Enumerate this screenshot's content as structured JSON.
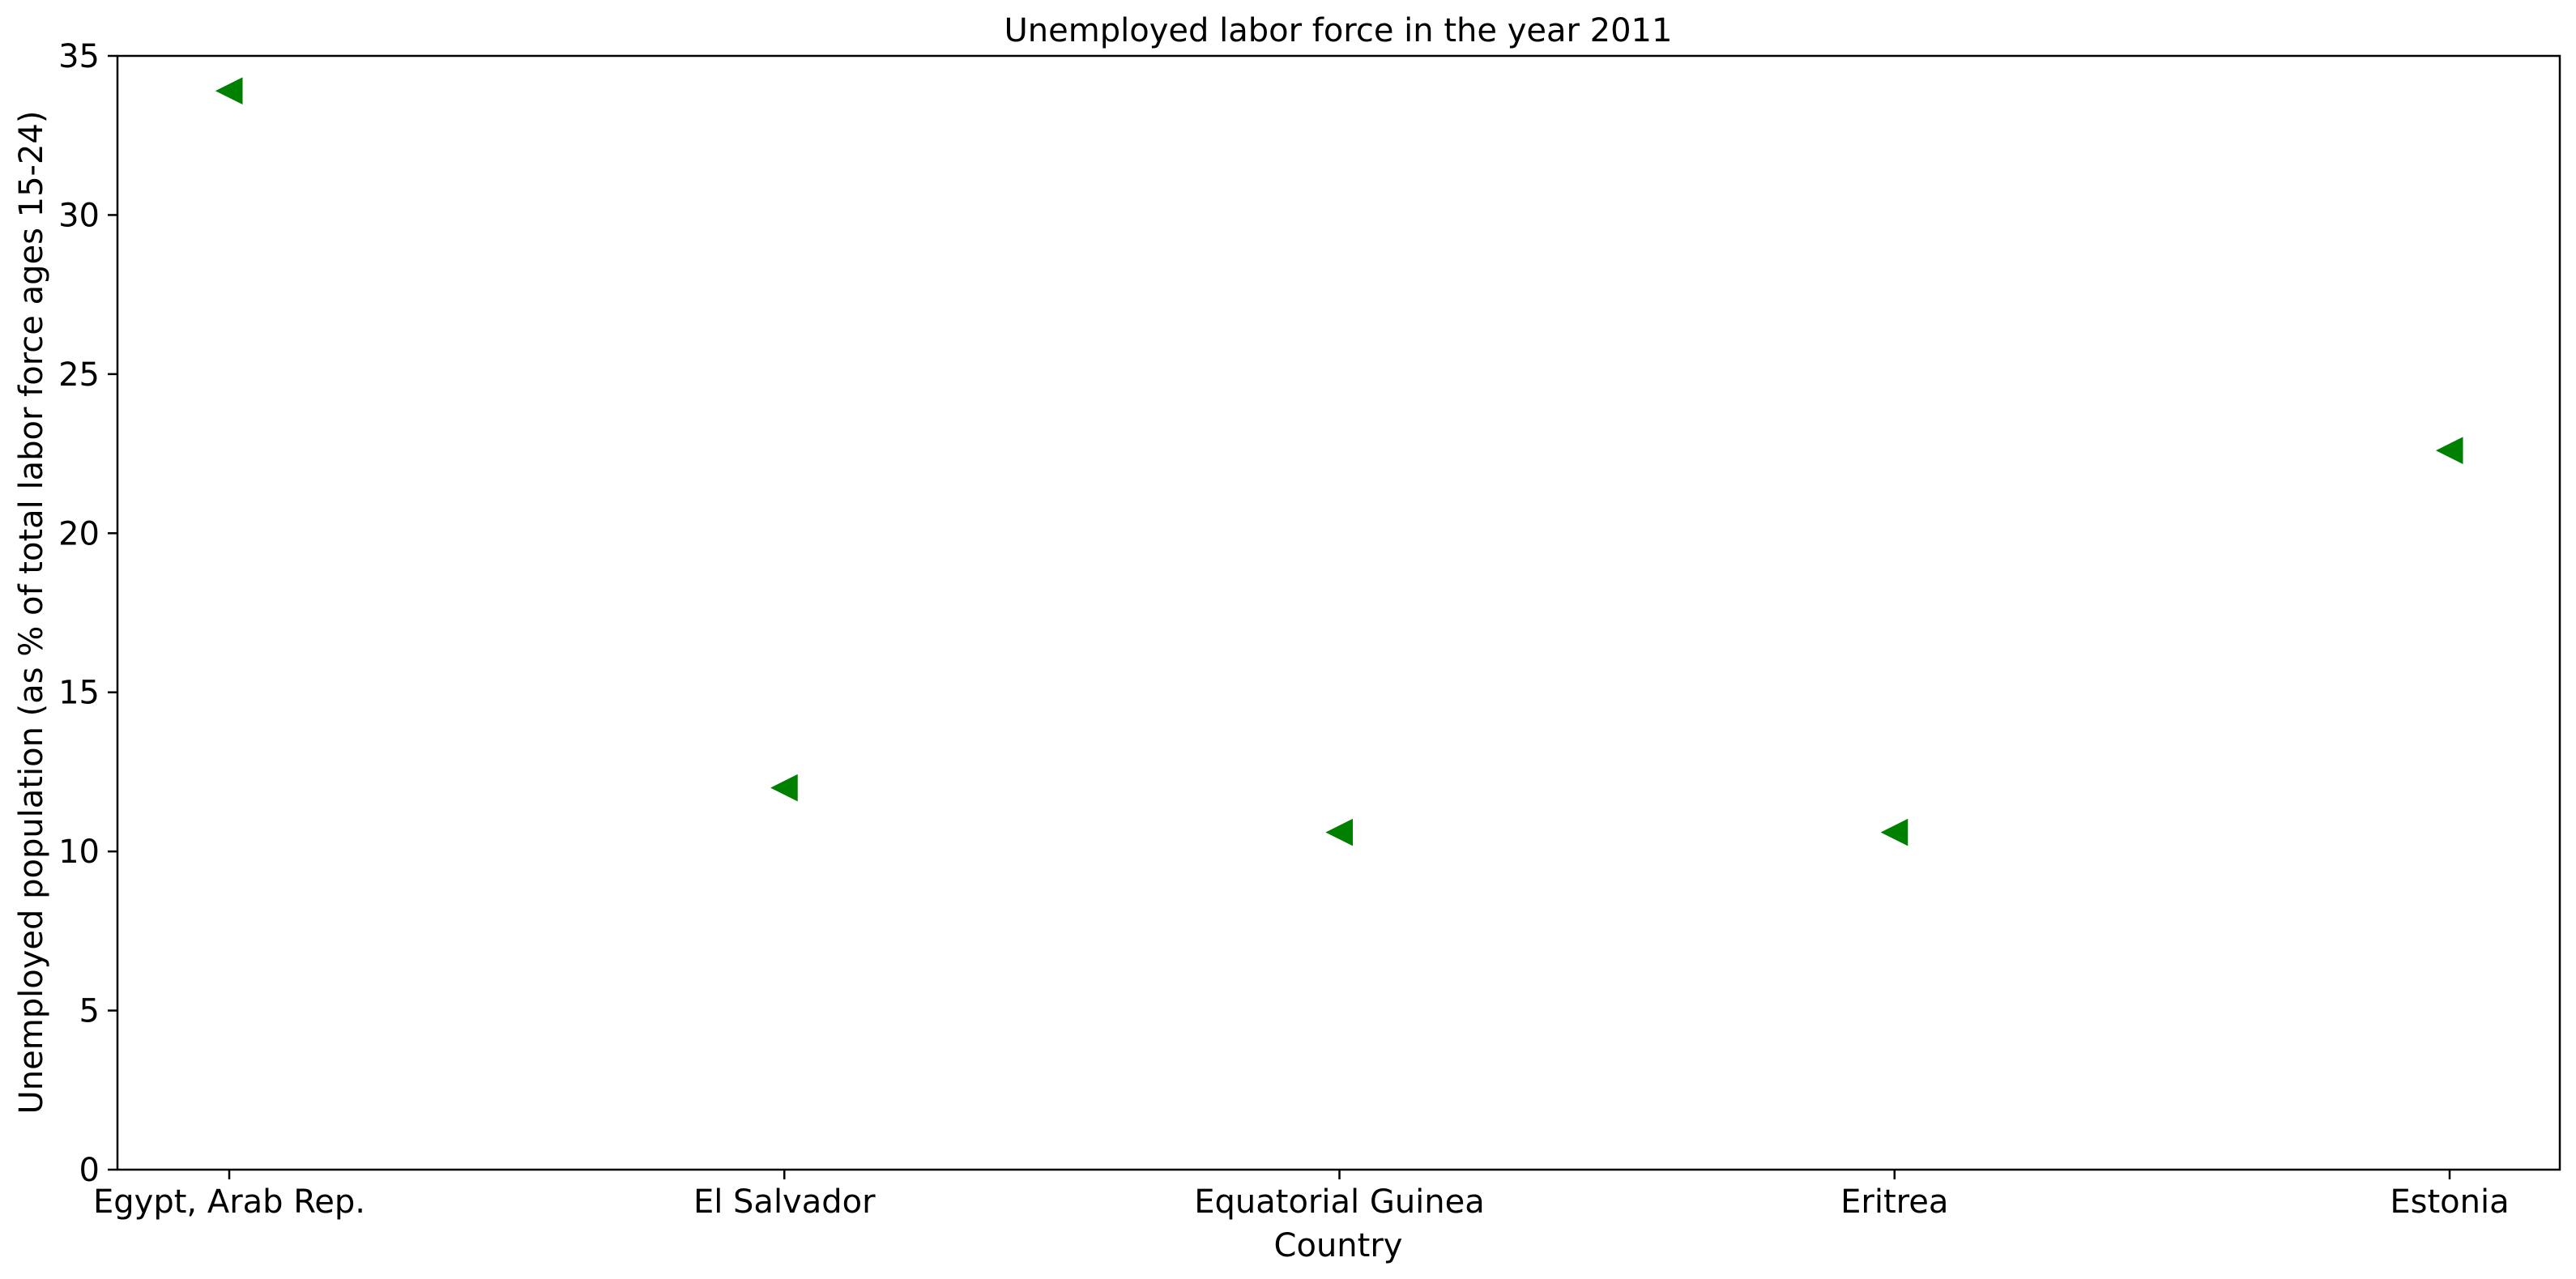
{
  "chart_data": {
    "type": "scatter",
    "title": "Unemployed labor force in the year 2011",
    "xlabel": "Country",
    "ylabel": "Unemployed population (as % of total labor force ages 15-24)",
    "categories": [
      "Egypt, Arab Rep.",
      "El Salvador",
      "Equatorial Guinea",
      "Eritrea",
      "Estonia"
    ],
    "values": [
      33.9,
      12.0,
      10.6,
      10.6,
      22.6
    ],
    "ylim": [
      0,
      35
    ],
    "yticks": [
      0,
      5,
      10,
      15,
      20,
      25,
      30,
      35
    ],
    "marker": "triangle-left",
    "marker_color": "#008000",
    "grid": false,
    "legend": "none"
  }
}
